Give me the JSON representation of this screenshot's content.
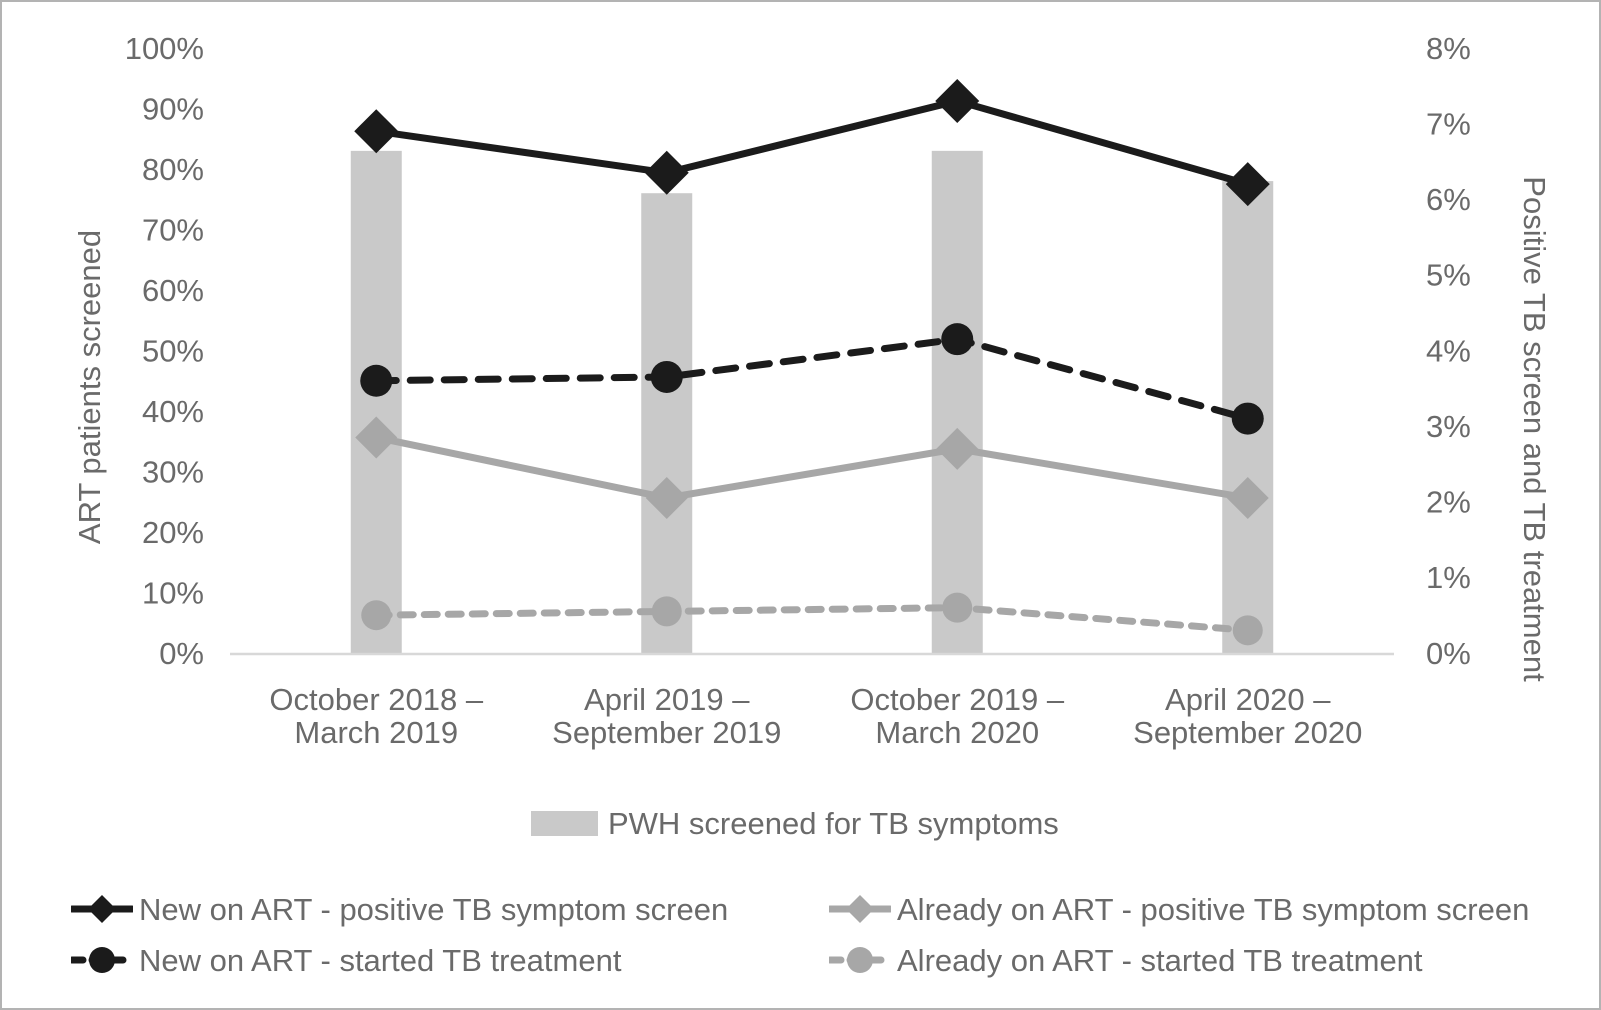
{
  "colors": {
    "background": "#ffffff",
    "frame_border": "#b3b3b3",
    "axis_line": "#d8d8d8",
    "text": "#6a6a6a",
    "series_black": "#1b1b1b",
    "series_gray": "#a7a7a7",
    "bar_fill": "#c9c9c9"
  },
  "chart_data": {
    "type": "bar+line dual-axis combo",
    "grid": "off",
    "legend_position": "bottom",
    "categories": [
      "October 2018 – March 2019",
      "April 2019 – September 2019",
      "October 2019 – March 2020",
      "April 2020 – September 2020"
    ],
    "category_label_lines": [
      [
        "October 2018 –",
        "March 2019"
      ],
      [
        "April 2019 –",
        "September 2019"
      ],
      [
        "October 2019 –",
        "March 2020"
      ],
      [
        "April 2020 –",
        "September 2020"
      ]
    ],
    "left_axis": {
      "label": "ART patients screened",
      "min": 0,
      "max": 100,
      "step": 10,
      "ticks": [
        "0%",
        "10%",
        "20%",
        "30%",
        "40%",
        "50%",
        "60%",
        "70%",
        "80%",
        "90%",
        "100%"
      ]
    },
    "right_axis": {
      "label": "Positive TB screen and TB treatment",
      "min": 0,
      "max": 8,
      "step": 1,
      "ticks": [
        "0%",
        "1%",
        "2%",
        "3%",
        "4%",
        "5%",
        "6%",
        "7%",
        "8%"
      ]
    },
    "bar_series": {
      "name": "PWH screened for TB symptoms",
      "axis": "left",
      "values_percent": [
        83,
        76,
        83,
        78
      ],
      "color_key": "bar_fill"
    },
    "line_series": [
      {
        "name": "New on ART - positive TB symptom screen",
        "axis": "right",
        "values_percent": [
          6.9,
          6.35,
          7.3,
          6.2
        ],
        "color_key": "series_black",
        "line_style": "solid",
        "marker": "diamond"
      },
      {
        "name": "New on ART - started TB treatment",
        "axis": "right",
        "values_percent": [
          3.6,
          3.65,
          4.15,
          3.1
        ],
        "color_key": "series_black",
        "line_style": "dashed",
        "marker": "circle"
      },
      {
        "name": "Already on ART - positive TB symptom screen",
        "axis": "right",
        "values_percent": [
          2.85,
          2.05,
          2.7,
          2.05
        ],
        "color_key": "series_gray",
        "line_style": "solid",
        "marker": "diamond"
      },
      {
        "name": "Already on ART - started TB treatment",
        "axis": "right",
        "values_percent": [
          0.5,
          0.55,
          0.6,
          0.3
        ],
        "color_key": "series_gray",
        "line_style": "dashed",
        "marker": "circle"
      }
    ]
  }
}
